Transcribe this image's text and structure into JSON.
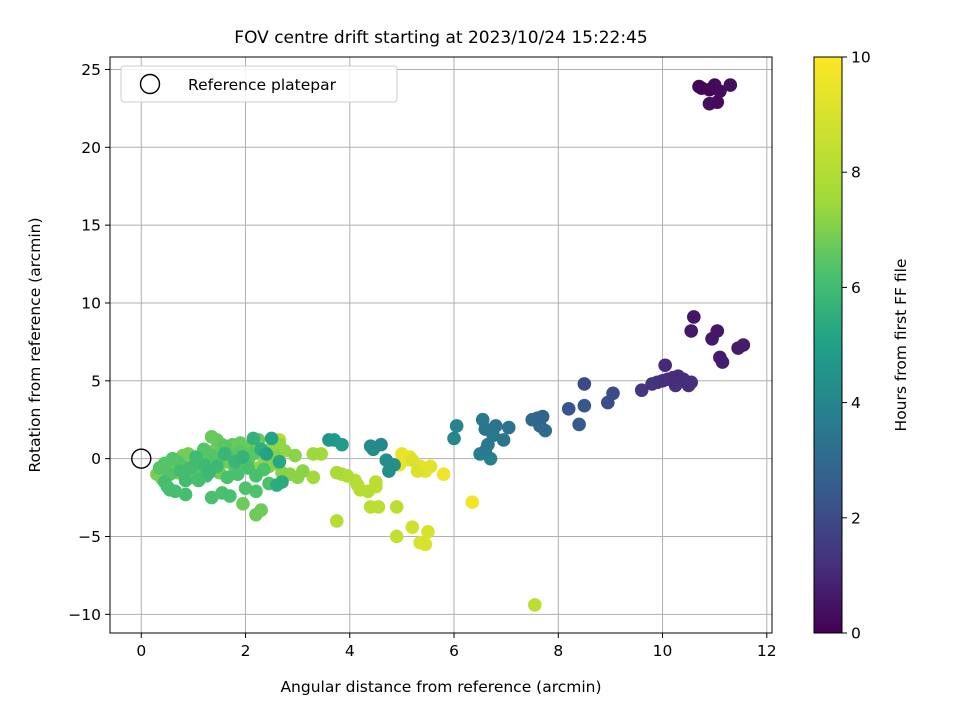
{
  "chart_data": {
    "type": "scatter",
    "title": "FOV centre drift starting at 2023/10/24 15:22:45",
    "xlabel": "Angular distance from reference (arcmin)",
    "ylabel": "Rotation from reference (arcmin)",
    "xlim": [
      -0.6,
      12.1
    ],
    "ylim": [
      -11.2,
      25.8
    ],
    "xticks": [
      0,
      2,
      4,
      6,
      8,
      10,
      12
    ],
    "yticks": [
      -10,
      -5,
      0,
      5,
      10,
      15,
      20,
      25
    ],
    "grid": true,
    "legend": {
      "position": "top-left",
      "entries": [
        "Reference platepar"
      ]
    },
    "colorbar": {
      "label": "Hours from first FF file",
      "range": [
        0,
        10
      ],
      "ticks": [
        0,
        2,
        4,
        6,
        8,
        10
      ],
      "colormap": "viridis"
    },
    "reference_point": {
      "x": 0,
      "y": 0,
      "label": "Reference platepar"
    },
    "points": [
      [
        10.7,
        23.9,
        0.1
      ],
      [
        10.75,
        23.8,
        0.15
      ],
      [
        10.9,
        23.7,
        0.2
      ],
      [
        11.0,
        24.0,
        0.3
      ],
      [
        11.1,
        23.6,
        0.25
      ],
      [
        11.3,
        24.0,
        0.4
      ],
      [
        10.9,
        22.8,
        0.35
      ],
      [
        11.05,
        22.9,
        0.3
      ],
      [
        10.6,
        9.1,
        0.6
      ],
      [
        10.55,
        8.2,
        0.7
      ],
      [
        11.05,
        8.2,
        0.65
      ],
      [
        10.95,
        7.7,
        0.7
      ],
      [
        11.1,
        6.5,
        0.8
      ],
      [
        11.15,
        6.2,
        0.85
      ],
      [
        11.45,
        7.1,
        0.75
      ],
      [
        11.55,
        7.3,
        0.8
      ],
      [
        10.05,
        6.0,
        1.2
      ],
      [
        10.2,
        5.2,
        1.3
      ],
      [
        10.3,
        5.3,
        1.25
      ],
      [
        10.0,
        5.0,
        1.4
      ],
      [
        9.8,
        4.8,
        1.5
      ],
      [
        10.4,
        5.1,
        1.35
      ],
      [
        10.5,
        4.7,
        1.3
      ],
      [
        10.55,
        4.9,
        1.4
      ],
      [
        10.25,
        4.7,
        1.45
      ],
      [
        9.6,
        4.4,
        1.6
      ],
      [
        9.9,
        4.9,
        1.55
      ],
      [
        10.1,
        5.1,
        1.35
      ],
      [
        8.5,
        4.8,
        2.2
      ],
      [
        9.05,
        4.2,
        2.3
      ],
      [
        8.95,
        3.6,
        2.4
      ],
      [
        8.2,
        3.2,
        2.6
      ],
      [
        8.5,
        3.4,
        2.7
      ],
      [
        8.4,
        2.2,
        2.8
      ],
      [
        7.6,
        2.6,
        3.3
      ],
      [
        7.7,
        2.7,
        3.2
      ],
      [
        7.5,
        2.5,
        3.4
      ],
      [
        7.65,
        2.1,
        3.4
      ],
      [
        7.75,
        1.8,
        3.5
      ],
      [
        7.05,
        2.0,
        3.8
      ],
      [
        6.95,
        1.2,
        3.9
      ],
      [
        6.8,
        2.1,
        3.8
      ],
      [
        6.6,
        1.9,
        3.9
      ],
      [
        6.75,
        1.5,
        4.0
      ],
      [
        6.65,
        0.9,
        4.1
      ],
      [
        6.55,
        2.5,
        4.0
      ],
      [
        6.5,
        0.3,
        4.2
      ],
      [
        6.6,
        0.5,
        4.1
      ],
      [
        6.7,
        0.0,
        4.3
      ],
      [
        6.05,
        2.1,
        4.5
      ],
      [
        6.0,
        1.3,
        4.6
      ],
      [
        4.6,
        0.9,
        4.7
      ],
      [
        4.45,
        0.6,
        4.8
      ],
      [
        4.4,
        0.8,
        4.75
      ],
      [
        4.7,
        -0.1,
        4.9
      ],
      [
        4.75,
        -0.8,
        4.95
      ],
      [
        4.85,
        -0.4,
        5.0
      ],
      [
        3.6,
        1.2,
        5.3
      ],
      [
        3.7,
        1.2,
        5.4
      ],
      [
        3.85,
        0.9,
        5.5
      ],
      [
        2.5,
        1.3,
        5.8
      ],
      [
        2.4,
        0.3,
        5.8
      ],
      [
        2.65,
        -0.2,
        6.0
      ],
      [
        2.7,
        -1.5,
        6.1
      ],
      [
        2.6,
        -1.7,
        6.2
      ],
      [
        2.3,
        0.6,
        6.3
      ],
      [
        2.15,
        1.3,
        6.4
      ],
      [
        1.95,
        0.1,
        6.5
      ],
      [
        1.8,
        -0.2,
        6.6
      ],
      [
        1.6,
        0.3,
        6.6
      ],
      [
        1.45,
        -0.5,
        6.7
      ],
      [
        1.3,
        -0.9,
        6.7
      ],
      [
        1.2,
        -0.4,
        6.8
      ],
      [
        1.05,
        0.1,
        6.8
      ],
      [
        0.95,
        -0.6,
        6.9
      ],
      [
        0.85,
        -1.4,
        6.9
      ],
      [
        0.75,
        -0.8,
        6.9
      ],
      [
        0.65,
        -2.1,
        7.0
      ],
      [
        0.55,
        -2.0,
        7.0
      ],
      [
        0.5,
        -1.8,
        7.0
      ],
      [
        0.45,
        -1.5,
        7.0
      ],
      [
        0.85,
        -2.3,
        7.0
      ],
      [
        1.1,
        -1.4,
        7.0
      ],
      [
        1.25,
        -1.1,
        7.0
      ],
      [
        1.35,
        -2.5,
        7.1
      ],
      [
        1.55,
        -2.2,
        7.1
      ],
      [
        1.7,
        -2.4,
        7.1
      ],
      [
        1.65,
        -1.2,
        7.1
      ],
      [
        1.85,
        -1.0,
        7.1
      ],
      [
        2.05,
        -0.6,
        7.1
      ],
      [
        2.2,
        -1.1,
        7.1
      ],
      [
        2.35,
        -0.7,
        7.2
      ],
      [
        2.45,
        -1.6,
        7.2
      ],
      [
        2.2,
        -2.1,
        7.2
      ],
      [
        2.0,
        -1.9,
        7.2
      ],
      [
        0.35,
        -0.6,
        7.3
      ],
      [
        0.45,
        -0.3,
        7.3
      ],
      [
        0.55,
        -1.0,
        7.3
      ],
      [
        0.6,
        0.0,
        7.3
      ],
      [
        0.7,
        -0.2,
        7.3
      ],
      [
        0.8,
        -0.5,
        7.3
      ],
      [
        0.9,
        -0.9,
        7.3
      ],
      [
        1.0,
        -1.2,
        7.3
      ],
      [
        1.15,
        -0.8,
        7.3
      ],
      [
        1.2,
        0.6,
        7.3
      ],
      [
        1.35,
        0.2,
        7.3
      ],
      [
        1.45,
        -0.2,
        7.3
      ],
      [
        1.6,
        0.8,
        7.4
      ],
      [
        1.7,
        0.2,
        7.4
      ],
      [
        1.8,
        -0.6,
        7.4
      ],
      [
        1.9,
        0.4,
        7.4
      ],
      [
        2.05,
        -0.1,
        7.4
      ],
      [
        2.15,
        0.3,
        7.4
      ],
      [
        1.35,
        1.4,
        7.6
      ],
      [
        1.45,
        1.2,
        7.6
      ],
      [
        1.55,
        0.9,
        7.6
      ],
      [
        1.75,
        0.9,
        7.6
      ],
      [
        1.9,
        1.0,
        7.6
      ],
      [
        2.05,
        0.7,
        7.6
      ],
      [
        2.25,
        1.2,
        7.6
      ],
      [
        1.95,
        -2.9,
        7.7
      ],
      [
        2.3,
        -3.3,
        7.7
      ],
      [
        2.2,
        -3.6,
        7.7
      ],
      [
        1.2,
        -0.3,
        7.6
      ],
      [
        0.9,
        0.3,
        7.8
      ],
      [
        1.0,
        -0.4,
        7.8
      ],
      [
        1.15,
        0.1,
        7.8
      ],
      [
        1.3,
        -0.5,
        7.8
      ],
      [
        1.4,
        0.5,
        7.8
      ],
      [
        1.5,
        -0.9,
        7.8
      ],
      [
        1.65,
        -0.2,
        7.8
      ],
      [
        1.75,
        0.3,
        7.8
      ],
      [
        1.85,
        -0.4,
        7.8
      ],
      [
        0.4,
        -1.3,
        7.9
      ],
      [
        0.3,
        -1.0,
        7.9
      ],
      [
        0.5,
        -0.6,
        7.9
      ],
      [
        0.6,
        -0.4,
        7.9
      ],
      [
        0.7,
        -0.9,
        7.9
      ],
      [
        0.8,
        0.2,
        7.9
      ],
      [
        2.45,
        -0.5,
        8.1
      ],
      [
        2.55,
        -0.3,
        8.1
      ],
      [
        2.6,
        0.1,
        8.1
      ],
      [
        2.7,
        -0.9,
        8.2
      ],
      [
        2.85,
        -1.0,
        8.2
      ],
      [
        3.0,
        -1.2,
        8.2
      ],
      [
        3.1,
        -0.8,
        8.2
      ],
      [
        2.95,
        0.2,
        8.2
      ],
      [
        2.75,
        0.5,
        8.3
      ],
      [
        2.65,
        0.9,
        8.3
      ],
      [
        2.5,
        0.6,
        8.3
      ],
      [
        2.35,
        0.1,
        8.3
      ],
      [
        2.25,
        -0.6,
        8.3
      ],
      [
        3.3,
        0.3,
        8.5
      ],
      [
        3.45,
        0.3,
        8.6
      ],
      [
        3.3,
        -1.2,
        8.6
      ],
      [
        3.75,
        -0.9,
        8.7
      ],
      [
        3.85,
        -1.0,
        8.8
      ],
      [
        3.95,
        -1.1,
        8.8
      ],
      [
        4.1,
        -1.4,
        8.9
      ],
      [
        4.15,
        -1.7,
        8.9
      ],
      [
        4.2,
        -2.0,
        8.9
      ],
      [
        4.35,
        -2.1,
        8.9
      ],
      [
        4.5,
        -1.5,
        9.0
      ],
      [
        4.5,
        -1.8,
        9.0
      ],
      [
        4.4,
        -3.1,
        9.0
      ],
      [
        4.55,
        -3.1,
        9.0
      ],
      [
        3.75,
        -4.0,
        8.9
      ],
      [
        4.9,
        -3.1,
        9.0
      ],
      [
        4.9,
        -5.0,
        9.1
      ],
      [
        2.55,
        1.1,
        8.9
      ],
      [
        2.65,
        1.2,
        8.9
      ],
      [
        2.5,
        0.7,
        8.8
      ],
      [
        5.2,
        -4.4,
        9.3
      ],
      [
        5.35,
        -5.4,
        9.4
      ],
      [
        5.5,
        -4.7,
        9.4
      ],
      [
        5.45,
        -5.5,
        9.4
      ],
      [
        5.2,
        -0.1,
        9.5
      ],
      [
        5.3,
        -0.8,
        9.5
      ],
      [
        5.35,
        -0.5,
        9.6
      ],
      [
        5.45,
        -0.8,
        9.6
      ],
      [
        5.55,
        -0.5,
        9.6
      ],
      [
        5.0,
        0.3,
        9.7
      ],
      [
        5.05,
        -0.1,
        9.7
      ],
      [
        4.95,
        -0.4,
        9.7
      ],
      [
        5.15,
        0.1,
        9.7
      ],
      [
        5.8,
        -1.0,
        9.8
      ],
      [
        6.35,
        -2.8,
        9.8
      ],
      [
        7.55,
        -9.4,
        9.0
      ]
    ]
  }
}
